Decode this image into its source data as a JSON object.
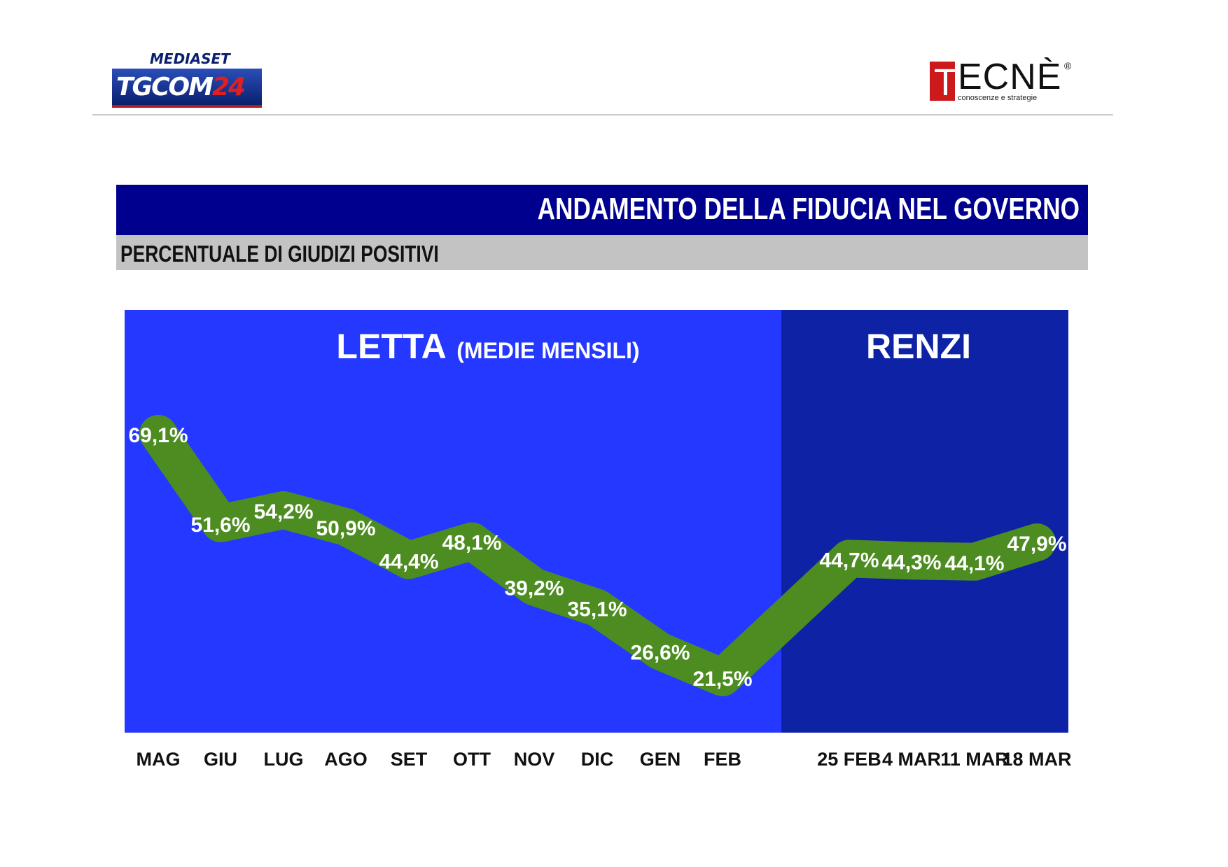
{
  "logos": {
    "left": {
      "top": "MEDIASET",
      "tg": "TG",
      "com": "COM",
      "num": "24"
    },
    "right": {
      "t": "T",
      "rest": "ECNÈ",
      "reg": "®",
      "tagline": "conoscenze e strategie"
    }
  },
  "header": {
    "title": "ANDAMENTO DELLA FIDUCIA NEL GOVERNO",
    "subtitle": "PERCENTUALE DI GIUDIZI POSITIVI"
  },
  "colors": {
    "title_bar": "#00008f",
    "letta_panel": "#2438ff",
    "renzi_panel": "#0e22a6",
    "line": "#4c8c20",
    "label": "#ffffff"
  },
  "chart_data": {
    "type": "line",
    "panels": [
      {
        "name": "LETTA",
        "note": "(MEDIE MENSILI)"
      },
      {
        "name": "RENZI",
        "note": ""
      }
    ],
    "categories": [
      "MAG",
      "GIU",
      "LUG",
      "AGO",
      "SET",
      "OTT",
      "NOV",
      "DIC",
      "GEN",
      "FEB",
      "25 FEB",
      "4 MAR",
      "11 MAR",
      "18 MAR"
    ],
    "values": [
      69.1,
      51.6,
      54.2,
      50.9,
      44.4,
      48.1,
      39.2,
      35.1,
      26.6,
      21.5,
      44.7,
      44.3,
      44.1,
      47.9
    ],
    "data_labels": [
      "69,1%",
      "51,6%",
      "54,2%",
      "50,9%",
      "44,4%",
      "48,1%",
      "39,2%",
      "35,1%",
      "26,6%",
      "21,5%",
      "44,7%",
      "44,3%",
      "44,1%",
      "47,9%"
    ],
    "title": "ANDAMENTO DELLA FIDUCIA NEL GOVERNO",
    "subtitle": "PERCENTUALE DI GIUDIZI POSITIVI",
    "xlabel": "",
    "ylabel": "",
    "grid": false,
    "legend": "none"
  }
}
